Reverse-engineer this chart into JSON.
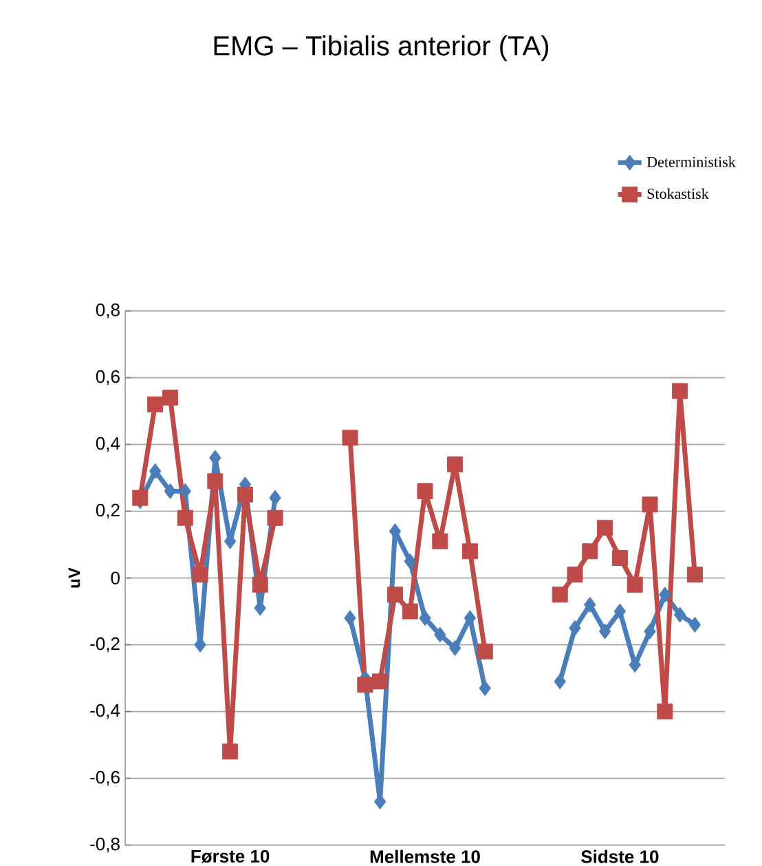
{
  "chart_data": {
    "type": "line",
    "title": "EMG – Tibialis anterior (TA)",
    "ylabel": "uV",
    "categories": [
      null,
      null,
      null,
      null,
      null,
      null,
      "Første 10",
      null,
      null,
      null,
      null,
      null,
      null,
      null,
      null,
      null,
      null,
      null,
      null,
      "Mellemste 10",
      null,
      null,
      null,
      null,
      null,
      null,
      null,
      null,
      null,
      null,
      null,
      null,
      "Sidste 10",
      null,
      null,
      null,
      null,
      null
    ],
    "series": [
      {
        "name": "Deterministisk",
        "color": "#4a7ebb",
        "marker": "diamond",
        "values": [
          0.23,
          0.32,
          0.26,
          0.26,
          -0.2,
          0.36,
          0.11,
          0.28,
          -0.09,
          0.24,
          null,
          null,
          null,
          null,
          -0.12,
          -0.3,
          -0.67,
          0.14,
          0.05,
          -0.12,
          -0.17,
          -0.21,
          -0.12,
          -0.33,
          null,
          null,
          null,
          null,
          -0.31,
          -0.15,
          -0.08,
          -0.16,
          -0.1,
          -0.26,
          -0.16,
          -0.05,
          -0.11,
          -0.14
        ]
      },
      {
        "name": "Stokastisk",
        "color": "#be4b48",
        "marker": "square",
        "values": [
          0.24,
          0.52,
          0.54,
          0.18,
          0.01,
          0.29,
          -0.52,
          0.25,
          -0.02,
          0.18,
          null,
          null,
          null,
          null,
          0.42,
          -0.32,
          -0.31,
          -0.05,
          -0.1,
          0.26,
          0.11,
          0.34,
          0.08,
          -0.22,
          null,
          null,
          null,
          null,
          -0.05,
          0.01,
          0.08,
          0.15,
          0.06,
          -0.02,
          0.22,
          -0.4,
          0.56,
          0.01
        ]
      }
    ],
    "ylim": [
      -0.8,
      0.8
    ],
    "yticks": [
      {
        "value": -0.8,
        "label": "-0,8"
      },
      {
        "value": -0.6,
        "label": "-0,6"
      },
      {
        "value": -0.4,
        "label": "-0,4"
      },
      {
        "value": -0.2,
        "label": "-0,2"
      },
      {
        "value": 0,
        "label": "0"
      },
      {
        "value": 0.2,
        "label": "0,2"
      },
      {
        "value": 0.4,
        "label": "0,4"
      },
      {
        "value": 0.6,
        "label": "0,6"
      },
      {
        "value": 0.8,
        "label": "0,8"
      }
    ],
    "grid": "y",
    "legend": "top right",
    "line_style": "solid"
  }
}
